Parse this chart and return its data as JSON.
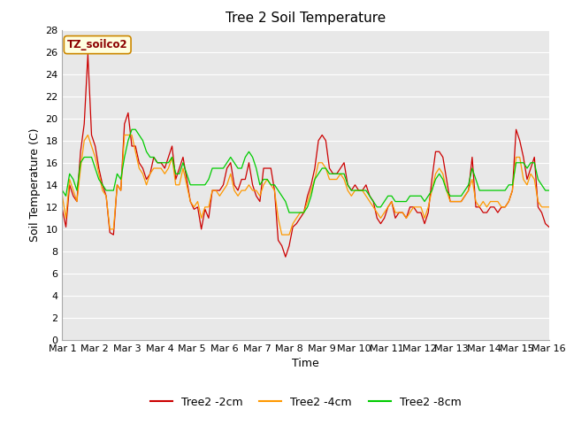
{
  "title": "Tree 2 Soil Temperature",
  "xlabel": "Time",
  "ylabel": "Soil Temperature (C)",
  "annotation": "TZ_soilco2",
  "ylim": [
    0,
    28
  ],
  "yticks": [
    0,
    2,
    4,
    6,
    8,
    10,
    12,
    14,
    16,
    18,
    20,
    22,
    24,
    26,
    28
  ],
  "xtick_labels": [
    "Mar 1",
    "Mar 2",
    "Mar 3",
    "Mar 4",
    "Mar 5",
    "Mar 6",
    "Mar 7",
    "Mar 8",
    "Mar 9",
    "Mar 10",
    "Mar 11",
    "Mar 12",
    "Mar 13",
    "Mar 14",
    "Mar 15",
    "Mar 16"
  ],
  "bg_color": "#e8e8e8",
  "line_colors": {
    "2cm": "#cc0000",
    "4cm": "#ff9900",
    "8cm": "#00cc00"
  },
  "legend_labels": [
    "Tree2 -2cm",
    "Tree2 -4cm",
    "Tree2 -8cm"
  ],
  "title_fontsize": 11,
  "axis_label_fontsize": 9,
  "tick_fontsize": 8,
  "legend_fontsize": 9,
  "tree2_2cm": [
    11.8,
    10.2,
    14.0,
    13.0,
    12.5,
    17.0,
    19.5,
    25.8,
    18.5,
    17.5,
    15.5,
    14.0,
    13.0,
    9.7,
    9.5,
    14.0,
    13.5,
    19.5,
    20.5,
    17.5,
    17.5,
    16.0,
    15.5,
    14.5,
    15.0,
    16.5,
    16.0,
    16.0,
    15.5,
    16.5,
    17.5,
    14.5,
    15.5,
    16.5,
    14.5,
    12.5,
    11.8,
    12.0,
    10.0,
    11.8,
    11.0,
    13.5,
    13.5,
    13.5,
    14.0,
    15.5,
    16.0,
    14.0,
    13.5,
    14.5,
    14.5,
    16.0,
    14.0,
    13.0,
    12.5,
    15.5,
    15.5,
    15.5,
    13.5,
    9.0,
    8.5,
    7.5,
    8.5,
    10.2,
    10.5,
    11.0,
    11.5,
    13.0,
    14.0,
    15.5,
    18.0,
    18.5,
    18.0,
    15.5,
    15.0,
    15.0,
    15.5,
    16.0,
    14.0,
    13.5,
    14.0,
    13.5,
    13.5,
    14.0,
    13.0,
    12.5,
    11.0,
    10.5,
    11.0,
    12.0,
    12.5,
    11.0,
    11.5,
    11.5,
    11.0,
    12.0,
    12.0,
    11.5,
    11.5,
    10.5,
    11.5,
    14.5,
    17.0,
    17.0,
    16.5,
    14.5,
    12.5,
    12.5,
    12.5,
    12.5,
    13.0,
    13.5,
    16.5,
    12.0,
    12.0,
    11.5,
    11.5,
    12.0,
    12.0,
    11.5,
    12.0,
    12.0,
    12.5,
    13.5,
    19.0,
    18.0,
    16.5,
    14.5,
    15.5,
    16.5,
    12.0,
    11.5,
    10.5,
    10.2
  ],
  "tree2_4cm": [
    13.0,
    11.0,
    14.5,
    13.5,
    12.5,
    15.5,
    18.0,
    18.5,
    17.5,
    16.5,
    15.0,
    13.5,
    13.0,
    10.0,
    10.0,
    14.0,
    13.5,
    18.5,
    18.5,
    18.5,
    17.0,
    15.5,
    15.0,
    14.0,
    15.0,
    15.5,
    15.5,
    15.5,
    15.0,
    15.5,
    16.5,
    14.0,
    14.0,
    15.5,
    14.0,
    12.5,
    12.0,
    12.5,
    11.0,
    12.0,
    12.0,
    13.5,
    13.5,
    13.0,
    13.5,
    14.0,
    15.0,
    13.5,
    13.0,
    13.5,
    13.5,
    14.0,
    13.5,
    13.5,
    13.0,
    14.0,
    14.5,
    14.0,
    13.5,
    11.0,
    9.5,
    9.5,
    9.5,
    10.5,
    11.0,
    11.5,
    11.5,
    12.5,
    13.5,
    14.5,
    16.0,
    16.0,
    15.5,
    14.5,
    14.5,
    14.5,
    15.0,
    14.5,
    13.5,
    13.0,
    13.5,
    13.5,
    13.5,
    13.0,
    12.5,
    12.0,
    11.5,
    11.0,
    11.5,
    12.0,
    12.5,
    11.5,
    11.5,
    11.5,
    11.0,
    11.5,
    12.0,
    12.0,
    12.0,
    11.0,
    12.0,
    13.5,
    15.0,
    15.5,
    15.0,
    13.5,
    12.5,
    12.5,
    12.5,
    12.5,
    13.0,
    13.5,
    14.5,
    12.5,
    12.0,
    12.5,
    12.0,
    12.5,
    12.5,
    12.5,
    12.0,
    12.0,
    12.5,
    13.5,
    16.5,
    16.5,
    14.5,
    14.0,
    15.0,
    14.5,
    12.5,
    12.0,
    12.0,
    12.0
  ],
  "tree2_8cm": [
    13.5,
    13.0,
    15.0,
    14.5,
    13.5,
    16.0,
    16.5,
    16.5,
    16.5,
    15.5,
    14.5,
    14.0,
    13.5,
    13.5,
    13.5,
    15.0,
    14.5,
    16.5,
    18.0,
    19.0,
    19.0,
    18.5,
    18.0,
    17.0,
    16.5,
    16.5,
    16.0,
    16.0,
    16.0,
    16.0,
    16.5,
    15.0,
    15.0,
    16.0,
    15.0,
    14.0,
    14.0,
    14.0,
    14.0,
    14.0,
    14.5,
    15.5,
    15.5,
    15.5,
    15.5,
    16.0,
    16.5,
    16.0,
    15.5,
    15.5,
    16.5,
    17.0,
    16.5,
    15.5,
    14.0,
    14.5,
    14.5,
    14.0,
    14.0,
    13.5,
    13.0,
    12.5,
    11.5,
    11.5,
    11.5,
    11.5,
    11.5,
    12.0,
    13.0,
    14.5,
    15.0,
    15.5,
    15.5,
    15.0,
    15.0,
    15.0,
    15.0,
    15.0,
    14.0,
    13.5,
    13.5,
    13.5,
    13.5,
    13.5,
    13.0,
    12.5,
    12.0,
    12.0,
    12.5,
    13.0,
    13.0,
    12.5,
    12.5,
    12.5,
    12.5,
    13.0,
    13.0,
    13.0,
    13.0,
    12.5,
    13.0,
    13.5,
    14.5,
    15.0,
    14.5,
    13.5,
    13.0,
    13.0,
    13.0,
    13.0,
    13.5,
    14.0,
    15.5,
    14.5,
    13.5,
    13.5,
    13.5,
    13.5,
    13.5,
    13.5,
    13.5,
    13.5,
    14.0,
    14.0,
    16.0,
    16.0,
    16.0,
    15.5,
    16.0,
    16.0,
    14.5,
    14.0,
    13.5,
    13.5
  ]
}
